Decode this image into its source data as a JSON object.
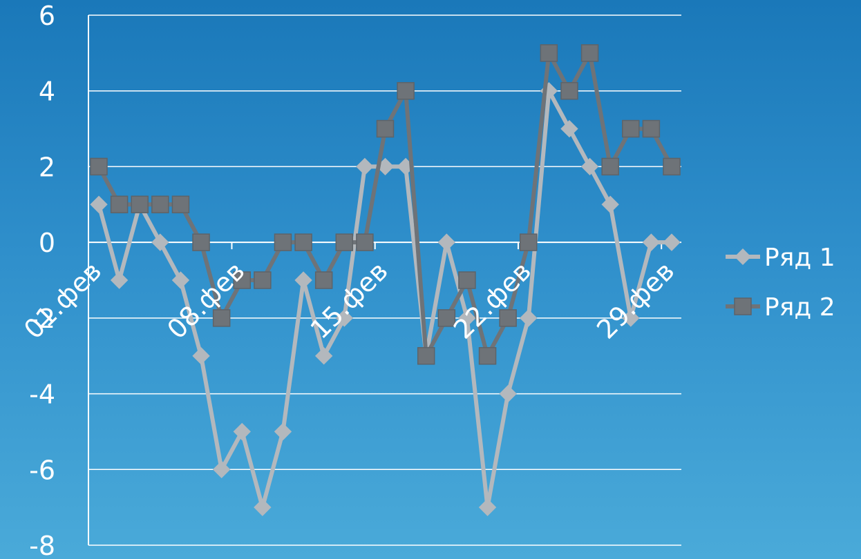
{
  "chart_data": {
    "type": "line",
    "title": "",
    "xlabel": "",
    "ylabel": "",
    "ylim": [
      -8,
      6
    ],
    "yticks": [
      6,
      4,
      2,
      0,
      -2,
      -4,
      -6,
      -8
    ],
    "grid": true,
    "legend": "right",
    "x": [
      "01.фев",
      "02.фев",
      "03.фев",
      "04.фев",
      "05.фев",
      "06.фев",
      "07.фев",
      "08.фев",
      "09.фев",
      "10.фев",
      "11.фев",
      "12.фев",
      "13.фев",
      "14.фев",
      "15.фев",
      "16.фев",
      "17.фев",
      "18.фев",
      "19.фев",
      "20.фев",
      "21.фев",
      "22.фев",
      "23.фев",
      "24.фев",
      "25.фев",
      "26.фев",
      "27.фев",
      "28.фев",
      "29.фев"
    ],
    "xtick_labels": [
      "01.фев",
      "08.фев",
      "15.фев",
      "22.фев",
      "29.фев"
    ],
    "xtick_indices": [
      0,
      7,
      14,
      21,
      28
    ],
    "series": [
      {
        "name": "Ряд 1",
        "marker": "diamond",
        "color": "#b3b8bd",
        "values": [
          1,
          -1,
          1,
          0,
          -1,
          -3,
          -6,
          -5,
          -7,
          -5,
          -1,
          -3,
          -2,
          2,
          2,
          2,
          -3,
          0,
          -2,
          -7,
          -4,
          -2,
          4,
          3,
          2,
          1,
          -2,
          0,
          0
        ]
      },
      {
        "name": "Ряд 2",
        "marker": "square",
        "color": "#6e7378",
        "values": [
          2,
          1,
          1,
          1,
          1,
          0,
          -2,
          -1,
          -1,
          0,
          0,
          -1,
          0,
          0,
          3,
          4,
          -3,
          -2,
          -1,
          -3,
          -2,
          0,
          5,
          4,
          5,
          2,
          3,
          3,
          2
        ]
      }
    ]
  }
}
